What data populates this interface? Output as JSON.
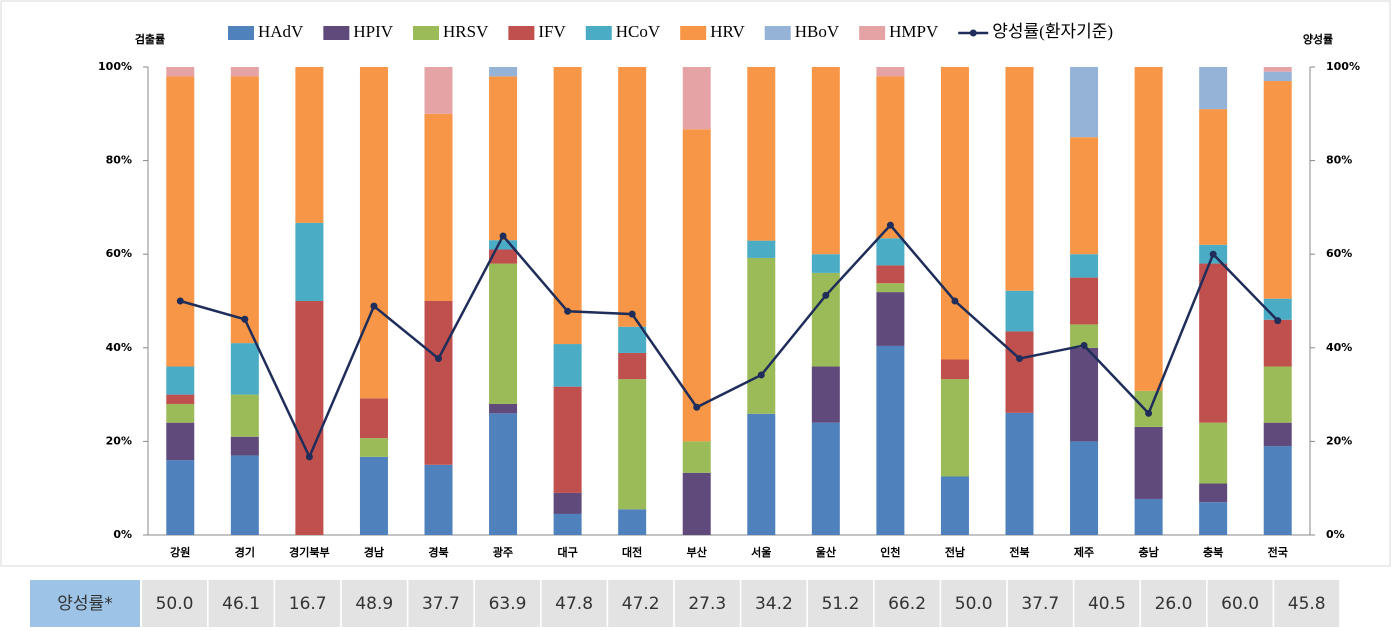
{
  "chart_data": {
    "type": "stacked_bar_line",
    "y_label": "검출률",
    "y2_label": "양성률",
    "categories": [
      "강원",
      "경기",
      "경기북부",
      "경남",
      "경북",
      "광주",
      "대구",
      "대전",
      "부산",
      "서울",
      "울산",
      "인천",
      "전남",
      "전북",
      "제주",
      "충남",
      "충북",
      "전국"
    ],
    "ylim": [
      0,
      100
    ],
    "yticks": [
      {
        "value": 0,
        "label": "0%"
      },
      {
        "value": 20,
        "label": "20%"
      },
      {
        "value": 40,
        "label": "40%"
      },
      {
        "value": 60,
        "label": "60%"
      },
      {
        "value": 80,
        "label": "80%"
      },
      {
        "value": 100,
        "label": "100%"
      }
    ],
    "y2lim": [
      0,
      100
    ],
    "y2ticks": [
      {
        "value": 0,
        "label": "0%"
      },
      {
        "value": 20,
        "label": "20%"
      },
      {
        "value": 40,
        "label": "40%"
      },
      {
        "value": 60,
        "label": "60%"
      },
      {
        "value": 80,
        "label": "80%"
      },
      {
        "value": 100,
        "label": "100%"
      }
    ],
    "series": [
      {
        "name": "HAdV",
        "color": "#4f81bd",
        "values": [
          16,
          17,
          0,
          16.7,
          15,
          26,
          4.5,
          5.5,
          0,
          25.9,
          24,
          40.4,
          12.5,
          26.1,
          20,
          7.7,
          7,
          19
        ]
      },
      {
        "name": "HPIV",
        "color": "#604a7b",
        "values": [
          8,
          4,
          0,
          0,
          0,
          2,
          4.5,
          0,
          13.3,
          0,
          12,
          11.5,
          0,
          0,
          20,
          15.4,
          4,
          5
        ]
      },
      {
        "name": "HRSV",
        "color": "#9bbb59",
        "values": [
          4,
          9,
          0,
          4,
          0,
          30,
          0,
          27.8,
          6.7,
          33.3,
          20,
          1.9,
          20.8,
          0,
          5,
          7.7,
          13,
          12
        ]
      },
      {
        "name": "IFV",
        "color": "#c0504d",
        "values": [
          2,
          0,
          50,
          8.5,
          35,
          3,
          22.7,
          5.6,
          0,
          0,
          0,
          3.8,
          4.2,
          17.4,
          10,
          0,
          34,
          10
        ]
      },
      {
        "name": "HCoV",
        "color": "#4bacc6",
        "values": [
          6,
          11,
          16.7,
          0,
          0,
          2,
          9.1,
          5.6,
          0,
          3.7,
          4,
          5.8,
          0,
          8.7,
          5,
          0,
          4,
          4.5
        ]
      },
      {
        "name": "HRV",
        "color": "#f79646",
        "values": [
          62,
          57,
          33.3,
          70.8,
          40,
          35,
          59.2,
          55.5,
          66.7,
          37.1,
          40,
          34.6,
          62.5,
          47.8,
          25,
          69.2,
          29,
          46.5
        ]
      },
      {
        "name": "HBoV",
        "color": "#95b3d7",
        "values": [
          0,
          0,
          0,
          0,
          0,
          2,
          0,
          0,
          0,
          0,
          0,
          0,
          0,
          0,
          15,
          0,
          9,
          2
        ]
      },
      {
        "name": "HMPV",
        "color": "#e6a3a6",
        "values": [
          2,
          2,
          0,
          0,
          10,
          0,
          0,
          0,
          13.3,
          0,
          0,
          2,
          0,
          0,
          0,
          0,
          0,
          1
        ]
      },
      {
        "name": "양성률(환자기준)",
        "color": "#1f2d5a",
        "type": "line",
        "axis": "y2",
        "values": [
          50.0,
          46.1,
          16.7,
          48.9,
          37.7,
          63.9,
          47.8,
          47.2,
          27.3,
          34.2,
          51.2,
          66.2,
          50.0,
          37.7,
          40.5,
          26.0,
          60.0,
          45.8
        ],
        "value_labels": [
          "50.0",
          "46.1",
          "16.7",
          "48.9",
          "37.7",
          "63.9",
          "47.8",
          "47.2",
          "27.3",
          "34.2",
          "51.2",
          "66.2",
          "50.0",
          "37.7",
          "40.5",
          "26.0",
          "60.0",
          "45.8"
        ]
      }
    ],
    "table_header": "양성률*"
  }
}
